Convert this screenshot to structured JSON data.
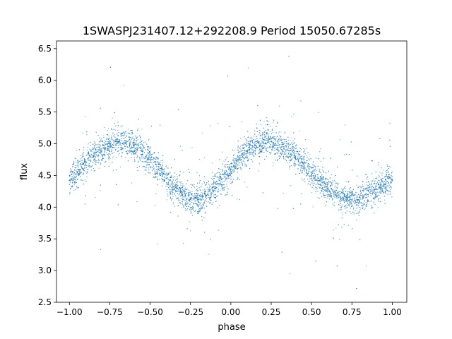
{
  "chart_data": {
    "type": "scatter",
    "title": "1SWASPJ231407.12+292208.9 Period 15050.67285s",
    "xlabel": "phase",
    "ylabel": "flux",
    "xlim": [
      -1.08,
      1.09
    ],
    "ylim": [
      2.5,
      6.62
    ],
    "xticks": [
      -1.0,
      -0.75,
      -0.5,
      -0.25,
      0.0,
      0.25,
      0.5,
      0.75,
      1.0
    ],
    "xtick_labels": [
      "−1.00",
      "−0.75",
      "−0.50",
      "−0.25",
      "0.00",
      "0.25",
      "0.50",
      "0.75",
      "1.00"
    ],
    "yticks": [
      2.5,
      3.0,
      3.5,
      4.0,
      4.5,
      5.0,
      5.5,
      6.0,
      6.5
    ],
    "ytick_labels": [
      "2.5",
      "3.0",
      "3.5",
      "4.0",
      "4.5",
      "5.0",
      "5.5",
      "6.0",
      "6.5"
    ],
    "grid": false,
    "legend": "none",
    "marker_color": "#1f77b4",
    "series": [
      {
        "x": [
          -1.0,
          -0.95,
          -0.9,
          -0.85,
          -0.8,
          -0.75,
          -0.7,
          -0.65,
          -0.6,
          -0.55,
          -0.5,
          -0.45,
          -0.4,
          -0.35,
          -0.3,
          -0.25,
          -0.2,
          -0.15,
          -0.1,
          -0.05,
          0.0,
          0.05,
          0.1,
          0.15,
          0.2,
          0.25,
          0.3,
          0.35,
          0.4,
          0.45,
          0.5,
          0.55,
          0.6,
          0.65,
          0.7,
          0.75,
          0.8,
          0.85,
          0.9,
          0.95,
          1.0
        ],
        "y": [
          4.42,
          4.55,
          4.68,
          4.8,
          4.9,
          4.98,
          5.03,
          5.02,
          4.97,
          4.88,
          4.75,
          4.6,
          4.45,
          4.3,
          4.18,
          4.12,
          4.12,
          4.18,
          4.3,
          4.45,
          4.6,
          4.75,
          4.88,
          4.97,
          5.02,
          5.03,
          4.98,
          4.9,
          4.8,
          4.68,
          4.55,
          4.42,
          4.3,
          4.2,
          4.13,
          4.12,
          4.15,
          4.2,
          4.28,
          4.36,
          4.42
        ]
      }
    ]
  }
}
